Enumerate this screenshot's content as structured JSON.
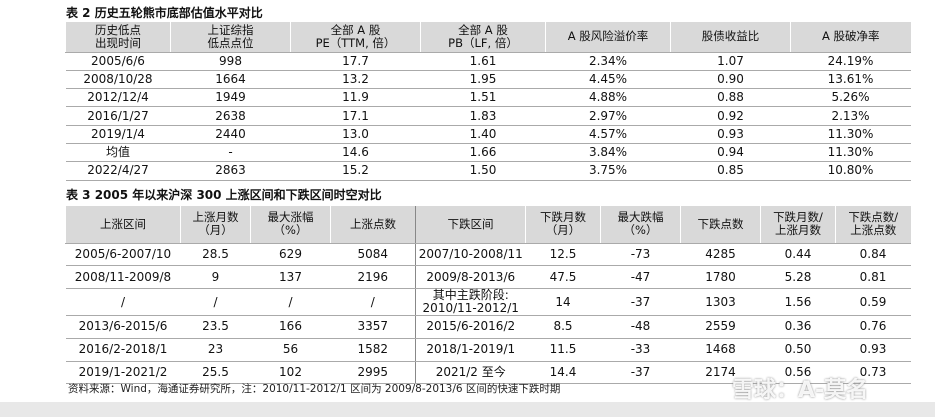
{
  "table1": {
    "title": "表 2 历史五轮熊市底部估值水平对比",
    "header": [
      [
        "历史低点",
        "出现时间"
      ],
      [
        "上证综指",
        "低点点位"
      ],
      [
        "全部 A 股",
        "PE（TTM, 倍）"
      ],
      [
        "全部 A 股",
        "PB（LF, 倍）"
      ],
      [
        "A 股风险溢价率"
      ],
      [
        "股债收益比"
      ],
      [
        "A 股破净率"
      ]
    ],
    "rows": [
      [
        "2005/6/6",
        "998",
        "17.7",
        "1.61",
        "2.34%",
        "1.07",
        "24.19%"
      ],
      [
        "2008/10/28",
        "1664",
        "13.2",
        "1.95",
        "4.45%",
        "0.90",
        "13.61%"
      ],
      [
        "2012/12/4",
        "1949",
        "11.9",
        "1.51",
        "4.88%",
        "0.88",
        "5.26%"
      ],
      [
        "2016/1/27",
        "2638",
        "17.1",
        "1.83",
        "2.97%",
        "0.92",
        "2.13%"
      ],
      [
        "2019/1/4",
        "2440",
        "13.0",
        "1.40",
        "4.57%",
        "0.93",
        "11.30%"
      ],
      [
        "均值",
        "-",
        "14.6",
        "1.66",
        "3.84%",
        "0.94",
        "11.30%"
      ],
      [
        "2022/4/27",
        "2863",
        "15.2",
        "1.50",
        "3.75%",
        "0.85",
        "10.80%"
      ]
    ]
  },
  "table2": {
    "title": "表 3 2005 年以来沪深 300 上涨区间和下跌区间时空对比",
    "header": [
      [
        "上涨区间"
      ],
      [
        "上涨月数",
        "（月）"
      ],
      [
        "最大涨幅",
        "（%）"
      ],
      [
        "上涨点数"
      ],
      [
        "下跌区间"
      ],
      [
        "下跌月数",
        "（月）"
      ],
      [
        "最大跌幅",
        "（%）"
      ],
      [
        "下跌点数"
      ],
      [
        "下跌月数/",
        "上涨月数"
      ],
      [
        "下跌点数/",
        "上涨点数"
      ]
    ],
    "rows": [
      [
        [
          "2005/6-2007/10"
        ],
        [
          "28.5"
        ],
        [
          "629"
        ],
        [
          "5084"
        ],
        [
          "2007/10-2008/11"
        ],
        [
          "12.5"
        ],
        [
          "-73"
        ],
        [
          "4285"
        ],
        [
          "0.44"
        ],
        [
          "0.84"
        ]
      ],
      [
        [
          "2008/11-2009/8"
        ],
        [
          "9"
        ],
        [
          "137"
        ],
        [
          "2196"
        ],
        [
          "2009/8-2013/6"
        ],
        [
          "47.5"
        ],
        [
          "-47"
        ],
        [
          "1780"
        ],
        [
          "5.28"
        ],
        [
          "0.81"
        ]
      ],
      [
        [
          "/"
        ],
        [
          "/"
        ],
        [
          "/"
        ],
        [
          "/"
        ],
        [
          "其中主跌阶段:",
          "2010/11-2012/1"
        ],
        [
          "14"
        ],
        [
          "-37"
        ],
        [
          "1303"
        ],
        [
          "1.56"
        ],
        [
          "0.59"
        ]
      ],
      [
        [
          "2013/6-2015/6"
        ],
        [
          "23.5"
        ],
        [
          "166"
        ],
        [
          "3357"
        ],
        [
          "2015/6-2016/2"
        ],
        [
          "8.5"
        ],
        [
          "-48"
        ],
        [
          "2559"
        ],
        [
          "0.36"
        ],
        [
          "0.76"
        ]
      ],
      [
        [
          "2016/2-2018/1"
        ],
        [
          "23"
        ],
        [
          "56"
        ],
        [
          "1582"
        ],
        [
          "2018/1-2019/1"
        ],
        [
          "11.5"
        ],
        [
          "-33"
        ],
        [
          "1468"
        ],
        [
          "0.50"
        ],
        [
          "0.93"
        ]
      ],
      [
        [
          "2019/1-2021/2"
        ],
        [
          "25.5"
        ],
        [
          "102"
        ],
        [
          "2995"
        ],
        [
          "2021/2 至今"
        ],
        [
          "14.4"
        ],
        [
          "-37"
        ],
        [
          "2174"
        ],
        [
          "0.56"
        ],
        [
          "0.73"
        ]
      ]
    ]
  },
  "source": "资料来源：Wind，海通证券研究所，注：2010/11-2012/1 区间为 2009/8-2013/6 区间的快速下跌时期",
  "watermark": "雪球：A-莫名"
}
